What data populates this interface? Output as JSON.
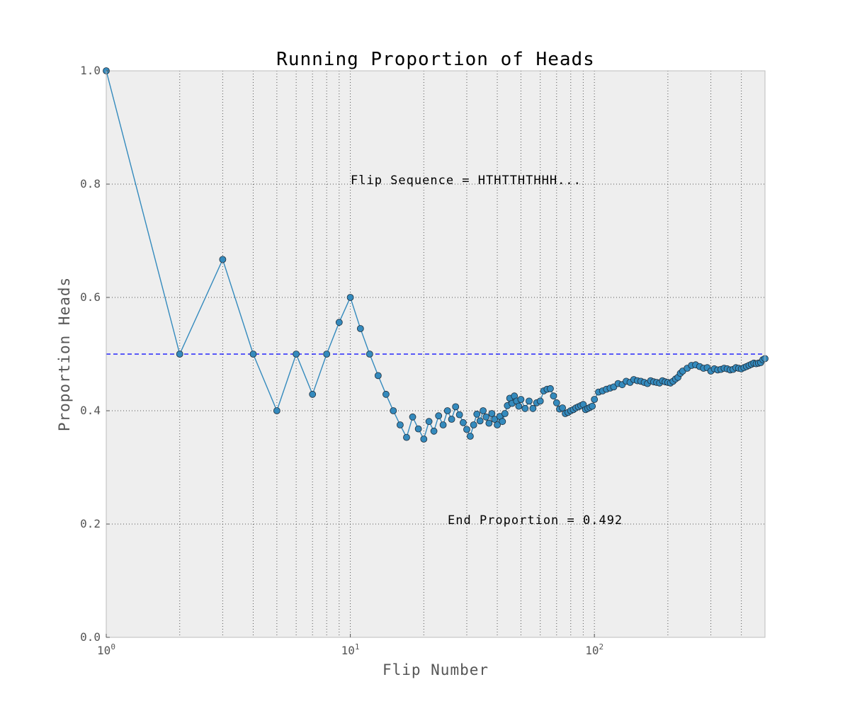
{
  "chart_data": {
    "type": "line",
    "title": "Running Proportion of Heads",
    "xlabel": "Flip Number",
    "ylabel": "Proportion Heads",
    "x_scale": "log",
    "xlim": [
      1,
      500
    ],
    "ylim": [
      0,
      1
    ],
    "x_tick_labels": [
      {
        "base": "10",
        "exp": "0",
        "value": 1
      },
      {
        "base": "10",
        "exp": "1",
        "value": 10
      },
      {
        "base": "10",
        "exp": "2",
        "value": 100
      }
    ],
    "y_ticks": [
      0.0,
      0.2,
      0.4,
      0.6,
      0.8,
      1.0
    ],
    "y_tick_labels": [
      "0.0",
      "0.2",
      "0.4",
      "0.6",
      "0.8",
      "1.0"
    ],
    "grid": true,
    "reference_line": {
      "y": 0.5,
      "style": "dashed",
      "color": "#0000ff"
    },
    "annotations": [
      {
        "text": "Flip Sequence = HTHTTHTHHH...",
        "x": 10,
        "y": 0.8
      },
      {
        "text": "End Proportion = 0.492",
        "x": 25,
        "y": 0.2
      }
    ],
    "series": [
      {
        "color": "#348abd",
        "x": [
          1,
          2,
          3,
          4,
          5,
          6,
          7,
          8,
          9,
          10,
          11,
          12,
          13,
          14,
          15,
          16,
          17,
          18,
          19,
          20,
          21,
          22,
          23,
          24,
          25,
          26,
          27,
          28,
          29,
          30,
          31,
          32,
          33,
          34,
          35,
          36,
          37,
          38,
          39,
          40,
          41,
          42,
          43,
          44,
          45,
          46,
          47,
          48,
          49,
          50,
          52,
          54,
          56,
          58,
          60,
          62,
          64,
          66,
          68,
          70,
          72,
          74,
          76,
          78,
          80,
          82,
          84,
          86,
          88,
          90,
          92,
          94,
          96,
          98,
          100,
          104,
          108,
          112,
          116,
          120,
          125,
          130,
          135,
          140,
          145,
          150,
          155,
          160,
          165,
          170,
          175,
          180,
          185,
          190,
          195,
          200,
          205,
          210,
          215,
          220,
          225,
          230,
          240,
          250,
          260,
          270,
          280,
          290,
          300,
          310,
          320,
          330,
          340,
          350,
          360,
          370,
          380,
          390,
          400,
          410,
          420,
          430,
          440,
          450,
          460,
          470,
          480,
          490,
          500
        ],
        "y": [
          1.0,
          0.5,
          0.667,
          0.5,
          0.4,
          0.5,
          0.429,
          0.5,
          0.556,
          0.6,
          0.545,
          0.5,
          0.462,
          0.429,
          0.4,
          0.375,
          0.353,
          0.389,
          0.368,
          0.35,
          0.381,
          0.364,
          0.391,
          0.375,
          0.4,
          0.385,
          0.407,
          0.393,
          0.379,
          0.367,
          0.355,
          0.375,
          0.394,
          0.382,
          0.4,
          0.389,
          0.378,
          0.395,
          0.385,
          0.375,
          0.39,
          0.381,
          0.395,
          0.409,
          0.422,
          0.413,
          0.426,
          0.417,
          0.408,
          0.42,
          0.404,
          0.417,
          0.404,
          0.414,
          0.417,
          0.435,
          0.438,
          0.439,
          0.426,
          0.414,
          0.403,
          0.405,
          0.395,
          0.397,
          0.4,
          0.402,
          0.405,
          0.407,
          0.409,
          0.411,
          0.402,
          0.404,
          0.406,
          0.408,
          0.42,
          0.433,
          0.435,
          0.438,
          0.44,
          0.442,
          0.448,
          0.446,
          0.452,
          0.45,
          0.455,
          0.453,
          0.452,
          0.45,
          0.448,
          0.453,
          0.451,
          0.45,
          0.449,
          0.453,
          0.451,
          0.45,
          0.449,
          0.452,
          0.456,
          0.459,
          0.466,
          0.47,
          0.475,
          0.48,
          0.481,
          0.478,
          0.475,
          0.476,
          0.47,
          0.474,
          0.472,
          0.473,
          0.475,
          0.474,
          0.472,
          0.473,
          0.476,
          0.475,
          0.474,
          0.476,
          0.478,
          0.48,
          0.482,
          0.484,
          0.483,
          0.484,
          0.485,
          0.49,
          0.492
        ]
      }
    ]
  }
}
